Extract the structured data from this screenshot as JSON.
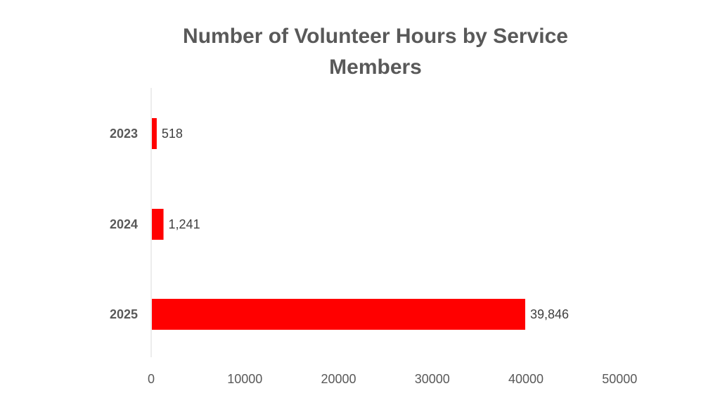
{
  "chart_data": {
    "type": "bar",
    "orientation": "horizontal",
    "title": "Number of Volunteer Hours by Service Members",
    "categories": [
      "2023",
      "2024",
      "2025"
    ],
    "values": [
      518,
      1241,
      39846
    ],
    "value_labels": [
      "518",
      "1,241",
      "39,846"
    ],
    "xlim": [
      0,
      50000
    ],
    "x_ticks": [
      0,
      10000,
      20000,
      30000,
      40000,
      50000
    ],
    "x_tick_labels": [
      "0",
      "10000",
      "20000",
      "30000",
      "40000",
      "50000"
    ],
    "xlabel": "",
    "ylabel": "",
    "grid": false,
    "legend": "none",
    "bar_color": "#ff0000"
  }
}
